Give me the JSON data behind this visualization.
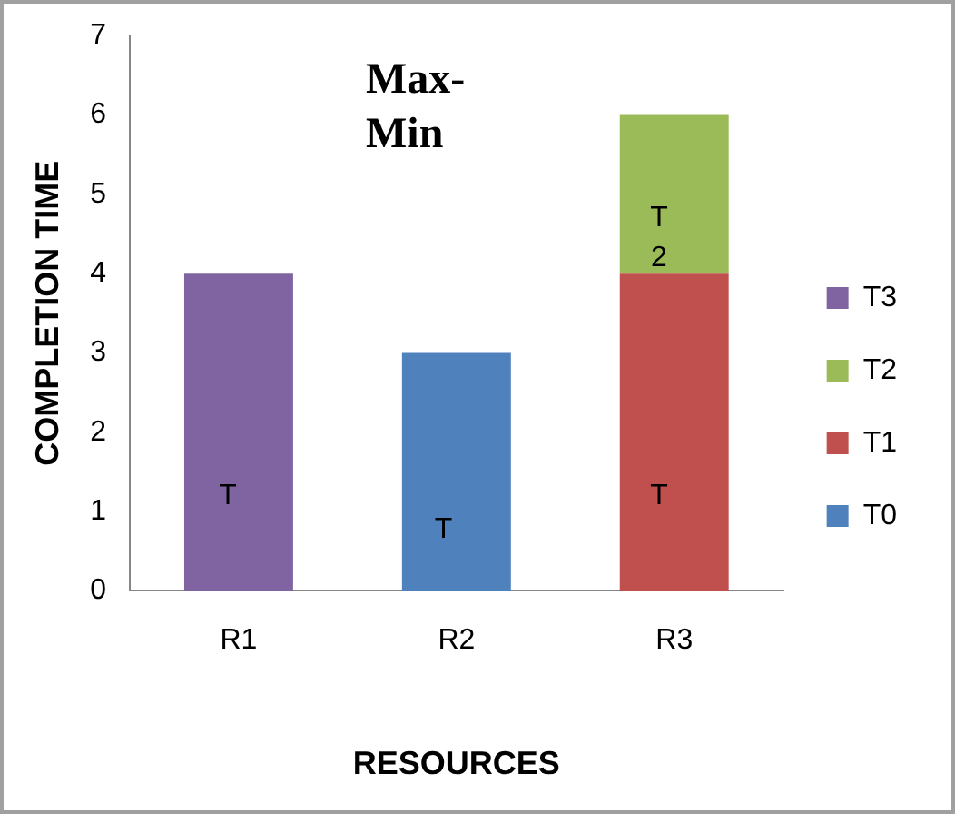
{
  "chart_data": {
    "type": "bar",
    "title": "Max-\nMin",
    "xlabel": "RESOURCES",
    "ylabel": "COMPLETION TIME",
    "categories": [
      "R1",
      "R2",
      "R3"
    ],
    "stacked": true,
    "series": [
      {
        "name": "T0",
        "color": "#4f81bd",
        "values": [
          null,
          3,
          null
        ]
      },
      {
        "name": "T1",
        "color": "#c0504d",
        "values": [
          null,
          null,
          4
        ]
      },
      {
        "name": "T2",
        "color": "#9bbb59",
        "values": [
          null,
          null,
          2
        ]
      },
      {
        "name": "T3",
        "color": "#8064a2",
        "values": [
          4,
          null,
          null
        ]
      }
    ],
    "annotations": [
      "T",
      "T",
      "T",
      "T\n2"
    ],
    "ylim": [
      0,
      7
    ],
    "yticks": [
      0,
      1,
      2,
      3,
      4,
      5,
      6,
      7
    ],
    "grid": false,
    "legend": "right"
  }
}
